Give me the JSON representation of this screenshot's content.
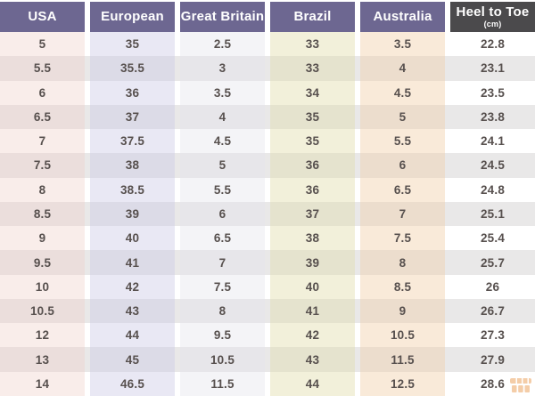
{
  "chart_data": {
    "type": "table",
    "columns": [
      "USA",
      "European",
      "Great Britain",
      "Brazil",
      "Australia",
      "Heel to Toe (cm)"
    ],
    "rows": [
      [
        "5",
        "35",
        "2.5",
        "33",
        "3.5",
        "22.8"
      ],
      [
        "5.5",
        "35.5",
        "3",
        "33",
        "4",
        "23.1"
      ],
      [
        "6",
        "36",
        "3.5",
        "34",
        "4.5",
        "23.5"
      ],
      [
        "6.5",
        "37",
        "4",
        "35",
        "5",
        "23.8"
      ],
      [
        "7",
        "37.5",
        "4.5",
        "35",
        "5.5",
        "24.1"
      ],
      [
        "7.5",
        "38",
        "5",
        "36",
        "6",
        "24.5"
      ],
      [
        "8",
        "38.5",
        "5.5",
        "36",
        "6.5",
        "24.8"
      ],
      [
        "8.5",
        "39",
        "6",
        "37",
        "7",
        "25.1"
      ],
      [
        "9",
        "40",
        "6.5",
        "38",
        "7.5",
        "25.4"
      ],
      [
        "9.5",
        "41",
        "7",
        "39",
        "8",
        "25.7"
      ],
      [
        "10",
        "42",
        "7.5",
        "40",
        "8.5",
        "26"
      ],
      [
        "10.5",
        "43",
        "8",
        "41",
        "9",
        "26.7"
      ],
      [
        "12",
        "44",
        "9.5",
        "42",
        "10.5",
        "27.3"
      ],
      [
        "13",
        "45",
        "10.5",
        "43",
        "11.5",
        "27.9"
      ],
      [
        "14",
        "46.5",
        "11.5",
        "44",
        "12.5",
        "28.6"
      ]
    ],
    "layout_hints": {
      "striped_rows": true,
      "column_gutters": true,
      "header_style": "solid blocks, white bold text"
    }
  },
  "table_style": {
    "columns": [
      {
        "label": "USA",
        "sublabel": "",
        "header_bg": "#6d6791",
        "tint_light": "#f9edea",
        "tint_dark": "#ebdedc"
      },
      {
        "label": "European",
        "sublabel": "",
        "header_bg": "#6d6791",
        "tint_light": "#e9e8f4",
        "tint_dark": "#dcdbe7"
      },
      {
        "label": "Great Britain",
        "sublabel": "",
        "header_bg": "#6d6791",
        "tint_light": "#f4f4f7",
        "tint_dark": "#e7e6ea"
      },
      {
        "label": "Brazil",
        "sublabel": "",
        "header_bg": "#6d6791",
        "tint_light": "#f2f0da",
        "tint_dark": "#e5e3ce"
      },
      {
        "label": "Australia",
        "sublabel": "",
        "header_bg": "#6d6791",
        "tint_light": "#f9ead9",
        "tint_dark": "#ecddcd"
      },
      {
        "label": "Heel to Toe",
        "sublabel": "(cm)",
        "header_bg": "#4b4a4c",
        "tint_light": "#ffffff",
        "tint_dark": "#e9e8e8"
      }
    ]
  },
  "colors": {
    "header_purple": "#6d6791",
    "header_dark": "#4b4a4c",
    "header_text": "#ffffff",
    "cell_text": "#57504e",
    "stripe_light": "#ffffff",
    "stripe_dark": "#e9e8e8",
    "watermark_orange": "#e8913f"
  },
  "watermark": {
    "icon": "shop-logo-icon"
  }
}
